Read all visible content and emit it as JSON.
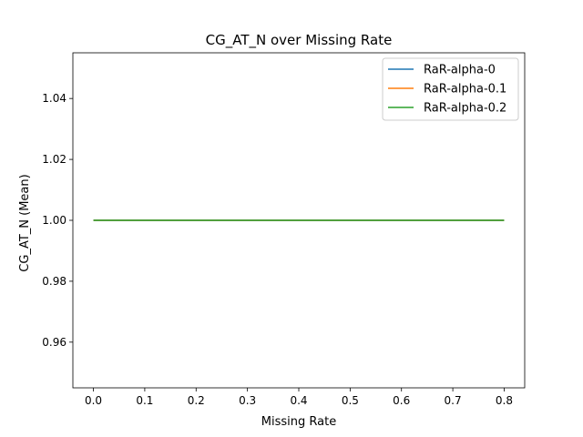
{
  "chart_data": {
    "type": "line",
    "title": "CG_AT_N over Missing Rate",
    "xlabel": "Missing Rate",
    "ylabel": "CG_AT_N (Mean)",
    "xlim": [
      -0.04,
      0.84
    ],
    "ylim": [
      0.945,
      1.055
    ],
    "xticks": [
      "0.0",
      "0.1",
      "0.2",
      "0.3",
      "0.4",
      "0.5",
      "0.6",
      "0.7",
      "0.8"
    ],
    "yticks": [
      "0.96",
      "0.98",
      "1.00",
      "1.02",
      "1.04"
    ],
    "x": [
      0.0,
      0.1,
      0.2,
      0.3,
      0.4,
      0.5,
      0.6,
      0.7,
      0.8
    ],
    "series": [
      {
        "name": "RaR-alpha-0",
        "color": "#1f77b4",
        "values": [
          1,
          1,
          1,
          1,
          1,
          1,
          1,
          1,
          1
        ]
      },
      {
        "name": "RaR-alpha-0.1",
        "color": "#ff7f0e",
        "values": [
          1,
          1,
          1,
          1,
          1,
          1,
          1,
          1,
          1
        ]
      },
      {
        "name": "RaR-alpha-0.2",
        "color": "#2ca02c",
        "values": [
          1,
          1,
          1,
          1,
          1,
          1,
          1,
          1,
          1
        ]
      }
    ],
    "grid": false,
    "legend_position": "top-right"
  }
}
